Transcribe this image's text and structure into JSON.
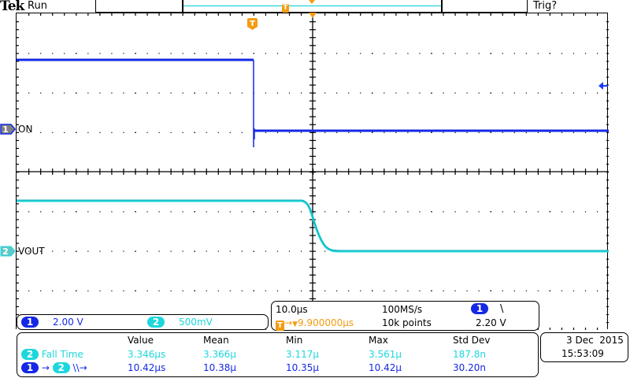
{
  "header": {
    "brand": "Tek",
    "acquisition_state": "Run",
    "trigger_state": "Trig?"
  },
  "colors": {
    "ch1": "#1428e6",
    "ch2": "#1ed7dc",
    "trigger": "#f39c12",
    "grid": "#000000"
  },
  "channels": [
    {
      "id": "1",
      "label": "ON",
      "scale": "2.00 V"
    },
    {
      "id": "2",
      "label": "VOUT",
      "scale": "500mV"
    }
  ],
  "timebase": {
    "horizontal_scale": "10.0µs",
    "sample_rate": "100MS/s",
    "trigger_position": "9.900000µs",
    "record_length": "10k points",
    "trigger_source": "1",
    "trigger_slope": "falling",
    "trigger_slope_glyph": "\\",
    "trigger_level": "2.20 V"
  },
  "measurements": {
    "headers": [
      "Value",
      "Mean",
      "Min",
      "Max",
      "Std Dev"
    ],
    "rows": [
      {
        "source": "2",
        "name": "Fall Time",
        "value": "3.346µs",
        "mean": "3.366µ",
        "min": "3.117µ",
        "max": "3.561µ",
        "std_dev": "187.8n"
      },
      {
        "source": "1",
        "source2": "2",
        "name": "Delay",
        "edge_glyphs": "\\\\→",
        "value": "10.42µs",
        "mean": "10.38µ",
        "min": "10.35µ",
        "max": "10.42µ",
        "std_dev": "30.20n"
      }
    ]
  },
  "datetime": {
    "date": "3 Dec  2015",
    "time": "15:53:09"
  },
  "markers": {
    "trigger_glyph": "T",
    "arrow_glyph": "→",
    "down_glyph": "▼"
  }
}
